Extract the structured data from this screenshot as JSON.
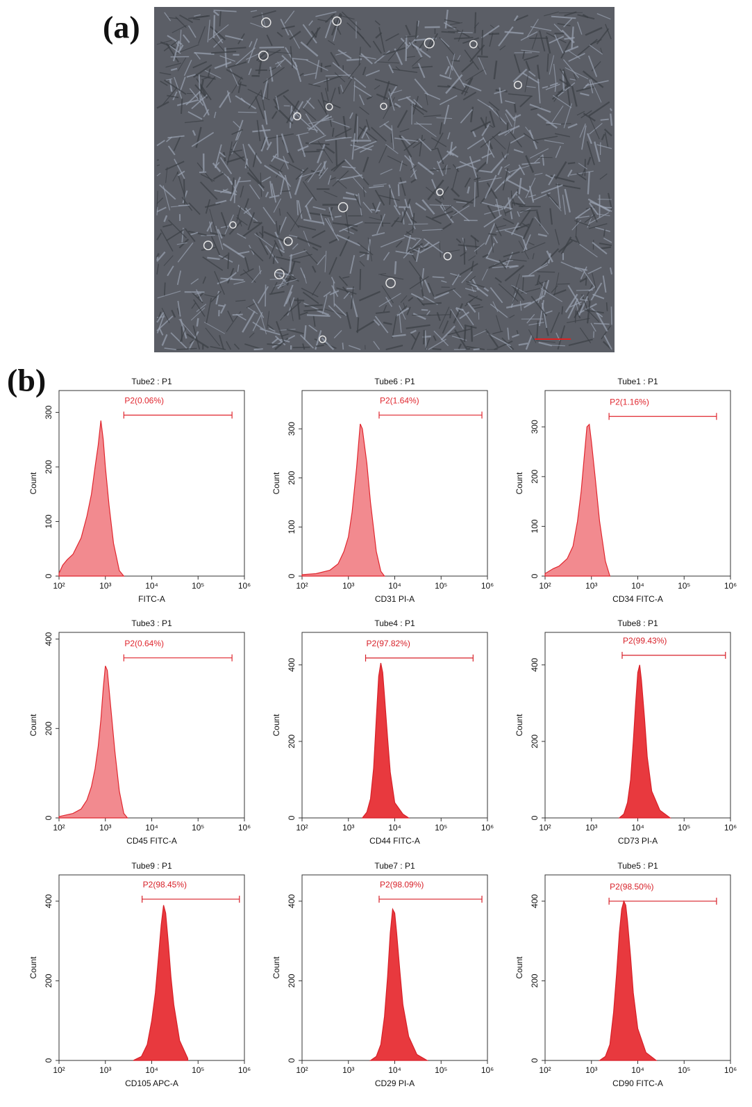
{
  "panel_labels": [
    "(a)",
    "(b)"
  ],
  "chart_data": [
    {
      "type": "area",
      "title": "Tube2 : P1",
      "x_label": "FITC-A",
      "y_label": "Count",
      "color": "#f28a8f",
      "line_color": "#e0262e",
      "x_log": true,
      "x": [
        100,
        120,
        150,
        200,
        300,
        400,
        500,
        600,
        700,
        800,
        900,
        1000,
        1200,
        1500,
        2000,
        2500
      ],
      "values": [
        5,
        20,
        30,
        40,
        70,
        110,
        150,
        200,
        240,
        285,
        250,
        200,
        130,
        60,
        10,
        0
      ],
      "xlim": [
        100,
        1000000
      ],
      "xticks": [
        {
          "value": 100,
          "label": "10²"
        },
        {
          "value": 1000,
          "label": "10³"
        },
        {
          "value": 10000,
          "label": "10⁴"
        },
        {
          "value": 100000,
          "label": "10⁵"
        },
        {
          "value": 1000000,
          "label": "10⁶"
        }
      ],
      "ylim": [
        0,
        340
      ],
      "yticks": [
        0,
        100,
        200,
        300
      ],
      "gate": {
        "label": "P2(0.06%)",
        "x": [
          2500,
          540000
        ],
        "y": 295
      }
    },
    {
      "type": "area",
      "title": "Tube6 : P1",
      "x_label": "CD31 PI-A",
      "y_label": "Count",
      "color": "#f28a8f",
      "line_color": "#e0262e",
      "x_log": true,
      "x": [
        100,
        200,
        400,
        600,
        800,
        1000,
        1200,
        1500,
        1800,
        2000,
        2500,
        3000,
        4000,
        5000,
        6000
      ],
      "values": [
        3,
        5,
        12,
        25,
        50,
        80,
        130,
        220,
        310,
        300,
        230,
        150,
        50,
        10,
        0
      ],
      "xlim": [
        100,
        1000000
      ],
      "xticks": [
        {
          "value": 100,
          "label": "10²"
        },
        {
          "value": 1000,
          "label": "10³"
        },
        {
          "value": 10000,
          "label": "10⁴"
        },
        {
          "value": 100000,
          "label": "10⁵"
        },
        {
          "value": 1000000,
          "label": "10⁶"
        }
      ],
      "ylim": [
        0,
        378
      ],
      "yticks": [
        0,
        100,
        200,
        300
      ],
      "gate": {
        "label": "P2(1.64%)",
        "x": [
          4600,
          760000
        ],
        "y": 328
      }
    },
    {
      "type": "area",
      "title": "Tube1 : P1",
      "x_label": "CD34 FITC-A",
      "y_label": "Count",
      "color": "#f28a8f",
      "line_color": "#e0262e",
      "x_log": true,
      "x": [
        100,
        150,
        200,
        300,
        400,
        500,
        600,
        700,
        800,
        900,
        1000,
        1200,
        1500,
        2000,
        2500
      ],
      "values": [
        5,
        15,
        20,
        35,
        60,
        110,
        170,
        240,
        300,
        305,
        270,
        200,
        110,
        30,
        0
      ],
      "xlim": [
        100,
        1000000
      ],
      "xticks": [
        {
          "value": 100,
          "label": "10²"
        },
        {
          "value": 1000,
          "label": "10³"
        },
        {
          "value": 10000,
          "label": "10⁴"
        },
        {
          "value": 100000,
          "label": "10⁵"
        },
        {
          "value": 1000000,
          "label": "10⁶"
        }
      ],
      "ylim": [
        0,
        373
      ],
      "yticks": [
        0,
        100,
        200,
        300
      ],
      "gate": {
        "label": "P2(1.16%)",
        "x": [
          2400,
          500000
        ],
        "y": 321
      }
    },
    {
      "type": "area",
      "title": "Tube3 : P1",
      "x_label": "CD45 FITC-A",
      "y_label": "Count",
      "color": "#f28a8f",
      "line_color": "#e0262e",
      "x_log": true,
      "x": [
        100,
        200,
        300,
        400,
        500,
        600,
        700,
        800,
        900,
        1000,
        1100,
        1300,
        1600,
        2000,
        2500,
        3000
      ],
      "values": [
        3,
        10,
        20,
        40,
        70,
        110,
        160,
        220,
        290,
        340,
        330,
        250,
        150,
        60,
        10,
        0
      ],
      "xlim": [
        100,
        1000000
      ],
      "xticks": [
        {
          "value": 100,
          "label": "10²"
        },
        {
          "value": 1000,
          "label": "10³"
        },
        {
          "value": 10000,
          "label": "10⁴"
        },
        {
          "value": 100000,
          "label": "10⁵"
        },
        {
          "value": 1000000,
          "label": "10⁶"
        }
      ],
      "ylim": [
        0,
        415
      ],
      "yticks": [
        0,
        200,
        400
      ],
      "gate": {
        "label": "P2(0.64%)",
        "x": [
          2500,
          540000
        ],
        "y": 358
      }
    },
    {
      "type": "area",
      "title": "Tube4 : P1",
      "x_label": "CD44 FITC-A",
      "y_label": "Count",
      "color": "#e8393e",
      "line_color": "#d71f27",
      "x_log": true,
      "x": [
        2000,
        2500,
        3000,
        3500,
        4000,
        4500,
        5000,
        5500,
        6000,
        7000,
        8000,
        10000,
        15000,
        20000
      ],
      "values": [
        0,
        15,
        50,
        130,
        260,
        370,
        405,
        380,
        320,
        210,
        120,
        40,
        10,
        0
      ],
      "xlim": [
        100,
        1000000
      ],
      "xticks": [
        {
          "value": 100,
          "label": "10²"
        },
        {
          "value": 1000,
          "label": "10³"
        },
        {
          "value": 10000,
          "label": "10⁴"
        },
        {
          "value": 100000,
          "label": "10⁵"
        },
        {
          "value": 1000000,
          "label": "10⁶"
        }
      ],
      "ylim": [
        0,
        485
      ],
      "yticks": [
        0,
        200,
        400
      ],
      "gate": {
        "label": "P2(97.82%)",
        "x": [
          2350,
          490000
        ],
        "y": 418
      }
    },
    {
      "type": "area",
      "title": "Tube8 : P1",
      "x_label": "CD73 PI-A",
      "y_label": "Count",
      "color": "#e8393e",
      "line_color": "#d71f27",
      "x_log": true,
      "x": [
        4000,
        5000,
        6000,
        7000,
        8000,
        9000,
        10000,
        11000,
        12000,
        14000,
        16000,
        20000,
        30000,
        50000
      ],
      "values": [
        0,
        10,
        40,
        100,
        200,
        300,
        380,
        400,
        360,
        260,
        160,
        70,
        20,
        0
      ],
      "xlim": [
        100,
        1000000
      ],
      "xticks": [
        {
          "value": 100,
          "label": "10²"
        },
        {
          "value": 1000,
          "label": "10³"
        },
        {
          "value": 10000,
          "label": "10⁴"
        },
        {
          "value": 100000,
          "label": "10⁵"
        },
        {
          "value": 1000000,
          "label": "10⁶"
        }
      ],
      "ylim": [
        0,
        485
      ],
      "yticks": [
        0,
        200,
        400
      ],
      "gate": {
        "label": "P2(99.43%)",
        "x": [
          4600,
          780000
        ],
        "y": 425
      }
    },
    {
      "type": "area",
      "title": "Tube9 : P1",
      "x_label": "CD105 APC-A",
      "y_label": "Count",
      "color": "#e8393e",
      "line_color": "#d71f27",
      "x_log": true,
      "x": [
        4000,
        6000,
        8000,
        10000,
        12000,
        14000,
        16000,
        18000,
        20000,
        23000,
        26000,
        30000,
        40000,
        60000
      ],
      "values": [
        0,
        10,
        40,
        100,
        170,
        260,
        340,
        390,
        370,
        290,
        210,
        140,
        50,
        5
      ],
      "xlim": [
        100,
        1000000
      ],
      "xticks": [
        {
          "value": 100,
          "label": "10²"
        },
        {
          "value": 1000,
          "label": "10³"
        },
        {
          "value": 10000,
          "label": "10⁴"
        },
        {
          "value": 100000,
          "label": "10⁵"
        },
        {
          "value": 1000000,
          "label": "10⁶"
        }
      ],
      "ylim": [
        0,
        466
      ],
      "yticks": [
        0,
        200,
        400
      ],
      "gate": {
        "label": "P2(98.45%)",
        "x": [
          6200,
          780000
        ],
        "y": 405
      }
    },
    {
      "type": "area",
      "title": "Tube7 : P1",
      "x_label": "CD29 PI-A",
      "y_label": "Count",
      "color": "#e8393e",
      "line_color": "#d71f27",
      "x_log": true,
      "x": [
        3000,
        4000,
        5000,
        6000,
        7000,
        8000,
        9000,
        10000,
        11000,
        13000,
        15000,
        20000,
        30000,
        50000
      ],
      "values": [
        0,
        10,
        40,
        110,
        210,
        320,
        380,
        370,
        320,
        220,
        140,
        60,
        15,
        0
      ],
      "xlim": [
        100,
        1000000
      ],
      "xticks": [
        {
          "value": 100,
          "label": "10²"
        },
        {
          "value": 1000,
          "label": "10³"
        },
        {
          "value": 10000,
          "label": "10⁴"
        },
        {
          "value": 100000,
          "label": "10⁵"
        },
        {
          "value": 1000000,
          "label": "10⁶"
        }
      ],
      "ylim": [
        0,
        466
      ],
      "yticks": [
        0,
        200,
        400
      ],
      "gate": {
        "label": "P2(98.09%)",
        "x": [
          4600,
          760000
        ],
        "y": 405
      }
    },
    {
      "type": "area",
      "title": "Tube5 : P1",
      "x_label": "CD90 FITC-A",
      "y_label": "Count",
      "color": "#e8393e",
      "line_color": "#d71f27",
      "x_log": true,
      "x": [
        1500,
        2000,
        2500,
        3000,
        3500,
        4000,
        4500,
        5000,
        5500,
        6000,
        7000,
        8000,
        10000,
        15000,
        25000
      ],
      "values": [
        0,
        10,
        40,
        120,
        220,
        320,
        380,
        400,
        390,
        350,
        260,
        170,
        80,
        20,
        0
      ],
      "xlim": [
        100,
        1000000
      ],
      "xticks": [
        {
          "value": 100,
          "label": "10²"
        },
        {
          "value": 1000,
          "label": "10³"
        },
        {
          "value": 10000,
          "label": "10⁴"
        },
        {
          "value": 100000,
          "label": "10⁵"
        },
        {
          "value": 1000000,
          "label": "10⁶"
        }
      ],
      "ylim": [
        0,
        466
      ],
      "yticks": [
        0,
        200,
        400
      ],
      "gate": {
        "label": "P2(98.50%)",
        "x": [
          2400,
          500000
        ],
        "y": 400
      }
    }
  ]
}
